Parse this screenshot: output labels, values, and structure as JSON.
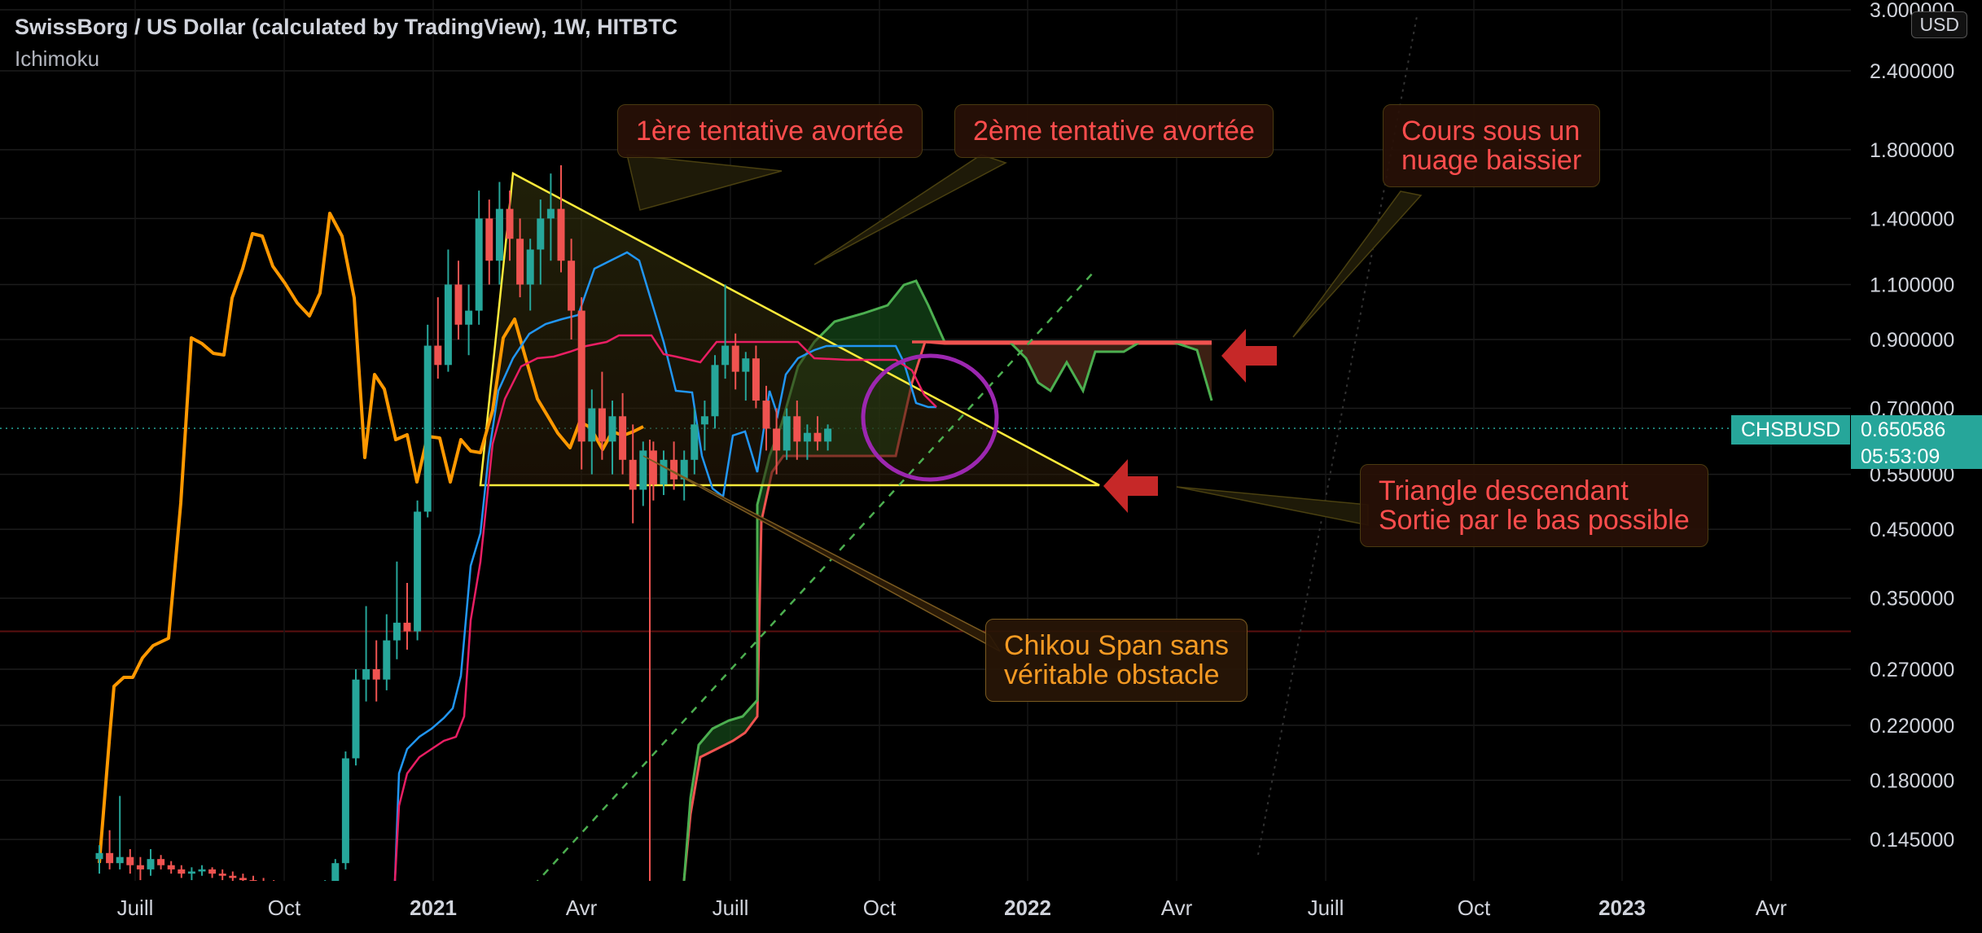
{
  "header": {
    "title": "SwissBorg / US Dollar (calculated by TradingView), 1W, HITBTC",
    "indicator": "Ichimoku"
  },
  "currency_badge": "USD",
  "price_tag": {
    "symbol": "CHSBUSD",
    "price": "0.650586",
    "countdown": "05:53:09",
    "color": "#26a69a"
  },
  "colors": {
    "up": "#26a69a",
    "down": "#ef5350",
    "chikou": "#ff9800",
    "tenkan": "#2196f3",
    "kijun": "#e91e63",
    "spanA": "#4caf50",
    "spanB": "#ef5350",
    "triangle": "#ffeb3b",
    "circle": "#9c27b0",
    "arrow": "#c62828"
  },
  "annotations": {
    "first_attempt": "1ère tentative avortée",
    "second_attempt": "2ème tentative avortée",
    "cloud_line1": "Cours sous un",
    "cloud_line2": "nuage baissier",
    "triangle_line1": "Triangle descendant",
    "triangle_line2": "Sortie par le bas possible",
    "chikou_line1": "Chikou Span sans",
    "chikou_line2": "véritable obstacle"
  },
  "chart_data": {
    "type": "candlestick",
    "scale": "log",
    "y_ticks": [
      "3.000000",
      "2.400000",
      "1.800000",
      "1.400000",
      "1.100000",
      "0.900000",
      "0.700000",
      "0.550000",
      "0.450000",
      "0.350000",
      "0.270000",
      "0.220000",
      "0.180000",
      "0.145000"
    ],
    "x_ticks": [
      {
        "label": "Juill",
        "bold": false
      },
      {
        "label": "Oct",
        "bold": false
      },
      {
        "label": "2021",
        "bold": true
      },
      {
        "label": "Avr",
        "bold": false
      },
      {
        "label": "Juill",
        "bold": false
      },
      {
        "label": "Oct",
        "bold": false
      },
      {
        "label": "2022",
        "bold": true
      },
      {
        "label": "Avr",
        "bold": false
      },
      {
        "label": "Juill",
        "bold": false
      },
      {
        "label": "Oct",
        "bold": false
      },
      {
        "label": "2023",
        "bold": true
      },
      {
        "label": "Avr",
        "bold": false
      }
    ],
    "last_price": 0.650586,
    "grid": true,
    "candles_ohlc": [
      [
        0.135,
        0.142,
        0.128,
        0.138
      ],
      [
        0.138,
        0.15,
        0.13,
        0.133
      ],
      [
        0.133,
        0.17,
        0.13,
        0.136
      ],
      [
        0.136,
        0.14,
        0.128,
        0.132
      ],
      [
        0.132,
        0.136,
        0.125,
        0.13
      ],
      [
        0.13,
        0.14,
        0.127,
        0.135
      ],
      [
        0.135,
        0.137,
        0.13,
        0.132
      ],
      [
        0.132,
        0.134,
        0.128,
        0.13
      ],
      [
        0.13,
        0.132,
        0.126,
        0.128
      ],
      [
        0.128,
        0.131,
        0.125,
        0.129
      ],
      [
        0.129,
        0.132,
        0.127,
        0.13
      ],
      [
        0.13,
        0.131,
        0.126,
        0.128
      ],
      [
        0.128,
        0.13,
        0.125,
        0.127
      ],
      [
        0.127,
        0.129,
        0.124,
        0.126
      ],
      [
        0.126,
        0.128,
        0.123,
        0.125
      ],
      [
        0.125,
        0.127,
        0.122,
        0.124
      ],
      [
        0.124,
        0.126,
        0.121,
        0.123
      ],
      [
        0.123,
        0.125,
        0.12,
        0.122
      ],
      [
        0.122,
        0.124,
        0.119,
        0.121
      ],
      [
        0.121,
        0.123,
        0.118,
        0.12
      ],
      [
        0.12,
        0.122,
        0.117,
        0.119
      ],
      [
        0.119,
        0.121,
        0.116,
        0.118
      ],
      [
        0.118,
        0.125,
        0.115,
        0.124
      ],
      [
        0.124,
        0.135,
        0.12,
        0.133
      ],
      [
        0.133,
        0.2,
        0.13,
        0.195
      ],
      [
        0.195,
        0.27,
        0.19,
        0.26
      ],
      [
        0.26,
        0.34,
        0.24,
        0.27
      ],
      [
        0.27,
        0.3,
        0.24,
        0.26
      ],
      [
        0.26,
        0.33,
        0.25,
        0.3
      ],
      [
        0.3,
        0.4,
        0.28,
        0.32
      ],
      [
        0.32,
        0.37,
        0.29,
        0.31
      ],
      [
        0.31,
        0.5,
        0.3,
        0.48
      ],
      [
        0.48,
        0.95,
        0.47,
        0.88
      ],
      [
        0.88,
        1.05,
        0.78,
        0.82
      ],
      [
        0.82,
        1.25,
        0.8,
        1.1
      ],
      [
        1.1,
        1.2,
        0.9,
        0.95
      ],
      [
        0.95,
        1.1,
        0.85,
        1.0
      ],
      [
        1.0,
        1.55,
        0.95,
        1.4
      ],
      [
        1.4,
        1.5,
        1.1,
        1.2
      ],
      [
        1.2,
        1.6,
        1.1,
        1.45
      ],
      [
        1.45,
        1.55,
        1.2,
        1.3
      ],
      [
        1.3,
        1.4,
        1.05,
        1.1
      ],
      [
        1.1,
        1.3,
        1.0,
        1.25
      ],
      [
        1.25,
        1.5,
        1.1,
        1.4
      ],
      [
        1.4,
        1.65,
        1.2,
        1.45
      ],
      [
        1.45,
        1.7,
        1.15,
        1.2
      ],
      [
        1.2,
        1.3,
        0.9,
        1.0
      ],
      [
        1.0,
        1.05,
        0.56,
        0.62
      ],
      [
        0.62,
        0.75,
        0.55,
        0.7
      ],
      [
        0.7,
        0.8,
        0.58,
        0.62
      ],
      [
        0.62,
        0.72,
        0.55,
        0.68
      ],
      [
        0.68,
        0.74,
        0.55,
        0.58
      ],
      [
        0.58,
        0.66,
        0.46,
        0.52
      ],
      [
        0.52,
        0.62,
        0.49,
        0.6
      ],
      [
        0.6,
        0.62,
        0.5,
        0.53
      ],
      [
        0.53,
        0.6,
        0.51,
        0.58
      ],
      [
        0.58,
        0.62,
        0.52,
        0.54
      ],
      [
        0.54,
        0.6,
        0.5,
        0.58
      ],
      [
        0.58,
        0.7,
        0.55,
        0.66
      ],
      [
        0.66,
        0.72,
        0.6,
        0.68
      ],
      [
        0.68,
        0.85,
        0.65,
        0.82
      ],
      [
        0.82,
        1.1,
        0.78,
        0.88
      ],
      [
        0.88,
        0.92,
        0.75,
        0.8
      ],
      [
        0.8,
        0.86,
        0.72,
        0.84
      ],
      [
        0.84,
        0.88,
        0.7,
        0.72
      ],
      [
        0.72,
        0.76,
        0.6,
        0.65
      ],
      [
        0.65,
        0.7,
        0.55,
        0.6
      ],
      [
        0.6,
        0.7,
        0.58,
        0.68
      ],
      [
        0.68,
        0.72,
        0.58,
        0.62
      ],
      [
        0.62,
        0.66,
        0.58,
        0.64
      ],
      [
        0.64,
        0.68,
        0.6,
        0.62
      ],
      [
        0.62,
        0.66,
        0.6,
        0.65
      ]
    ]
  }
}
